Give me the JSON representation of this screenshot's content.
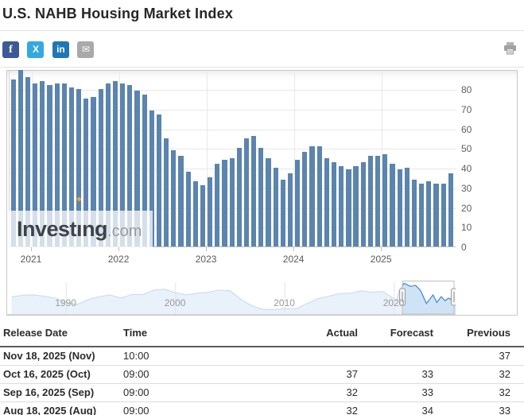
{
  "page": {
    "title": "U.S. NAHB Housing Market Index"
  },
  "share": {
    "facebook_label": "f",
    "x_label": "X",
    "linkedin_label": "in",
    "email_glyph": "✉"
  },
  "chart_data": {
    "type": "bar",
    "title": "U.S. NAHB Housing Market Index",
    "x_unit": "month",
    "months": [
      "2020-10",
      "2020-11",
      "2020-12",
      "2021-01",
      "2021-02",
      "2021-03",
      "2021-04",
      "2021-05",
      "2021-06",
      "2021-07",
      "2021-08",
      "2021-09",
      "2021-10",
      "2021-11",
      "2021-12",
      "2022-01",
      "2022-02",
      "2022-03",
      "2022-04",
      "2022-05",
      "2022-06",
      "2022-07",
      "2022-08",
      "2022-09",
      "2022-10",
      "2022-11",
      "2022-12",
      "2023-01",
      "2023-02",
      "2023-03",
      "2023-04",
      "2023-05",
      "2023-06",
      "2023-07",
      "2023-08",
      "2023-09",
      "2023-10",
      "2023-11",
      "2023-12",
      "2024-01",
      "2024-02",
      "2024-03",
      "2024-04",
      "2024-05",
      "2024-06",
      "2024-07",
      "2024-08",
      "2024-09",
      "2024-10",
      "2024-11",
      "2024-12",
      "2025-01",
      "2025-02",
      "2025-03",
      "2025-04",
      "2025-05",
      "2025-06",
      "2025-07",
      "2025-08",
      "2025-09",
      "2025-10"
    ],
    "values": [
      85,
      90,
      86,
      83,
      84,
      82,
      83,
      83,
      81,
      80,
      75,
      76,
      80,
      83,
      84,
      83,
      82,
      79,
      77,
      69,
      67,
      55,
      49,
      46,
      38,
      33,
      31,
      35,
      42,
      44,
      45,
      50,
      55,
      56,
      50,
      45,
      40,
      34,
      37,
      44,
      48,
      51,
      51,
      45,
      43,
      41,
      39,
      41,
      43,
      46,
      46,
      47,
      42,
      39,
      40,
      34,
      32,
      33,
      32,
      32,
      37
    ],
    "year_tick_labels": [
      "2021",
      "2022",
      "2023",
      "2024",
      "2025"
    ],
    "y_tick_labels": [
      0,
      10,
      20,
      30,
      40,
      50,
      60,
      70,
      80
    ],
    "ylim": [
      0,
      90
    ],
    "grid": true,
    "legend": "none",
    "bar_color": "#5b84ae",
    "navigator": {
      "decade_labels": [
        "1990",
        "2000",
        "2010",
        "2020"
      ],
      "points": [
        [
          1985,
          50
        ],
        [
          1986,
          55
        ],
        [
          1987,
          56
        ],
        [
          1988,
          52
        ],
        [
          1989,
          47
        ],
        [
          1990,
          34
        ],
        [
          1991,
          28
        ],
        [
          1992,
          42
        ],
        [
          1993,
          51
        ],
        [
          1994,
          56
        ],
        [
          1995,
          47
        ],
        [
          1996,
          57
        ],
        [
          1997,
          57
        ],
        [
          1998,
          70
        ],
        [
          1999,
          73
        ],
        [
          2000,
          62
        ],
        [
          2001,
          56
        ],
        [
          2002,
          61
        ],
        [
          2003,
          64
        ],
        [
          2004,
          70
        ],
        [
          2005,
          68
        ],
        [
          2006,
          42
        ],
        [
          2007,
          24
        ],
        [
          2008,
          14
        ],
        [
          2009,
          13
        ],
        [
          2010,
          16
        ],
        [
          2011,
          15
        ],
        [
          2012,
          30
        ],
        [
          2013,
          45
        ],
        [
          2014,
          52
        ],
        [
          2015,
          60
        ],
        [
          2016,
          61
        ],
        [
          2017,
          68
        ],
        [
          2018,
          64
        ],
        [
          2019,
          66
        ],
        [
          2020.2,
          40
        ],
        [
          2020.45,
          68
        ],
        [
          2020.9,
          90
        ],
        [
          2021.5,
          81
        ],
        [
          2021.95,
          84
        ],
        [
          2022.4,
          69
        ],
        [
          2022.95,
          31
        ],
        [
          2023.3,
          45
        ],
        [
          2023.55,
          56
        ],
        [
          2023.9,
          34
        ],
        [
          2024.05,
          40
        ],
        [
          2024.3,
          51
        ],
        [
          2024.65,
          39
        ],
        [
          2024.95,
          46
        ],
        [
          2025.1,
          45
        ],
        [
          2025.4,
          34
        ],
        [
          2025.65,
          32
        ],
        [
          2025.8,
          37
        ]
      ],
      "selection": {
        "from": 2020.75,
        "to": 2025.8
      }
    }
  },
  "watermark": {
    "text": "Investing",
    "suffix": ".com"
  },
  "table": {
    "headers": [
      "Release Date",
      "Time",
      "Actual",
      "Forecast",
      "Previous"
    ],
    "rows": [
      {
        "date": "Nov 18, 2025 (Nov)",
        "time": "10:00",
        "actual": "",
        "forecast": "",
        "previous": "37",
        "actual_class": ""
      },
      {
        "date": "Oct 16, 2025 (Oct)",
        "time": "09:00",
        "actual": "37",
        "forecast": "33",
        "previous": "32",
        "actual_class": "green"
      },
      {
        "date": "Sep 16, 2025 (Sep)",
        "time": "09:00",
        "actual": "32",
        "forecast": "33",
        "previous": "32",
        "actual_class": "red"
      },
      {
        "date": "Aug 18, 2025 (Aug)",
        "time": "09:00",
        "actual": "32",
        "forecast": "34",
        "previous": "33",
        "actual_class": "red"
      }
    ]
  },
  "colors": {
    "bar": "#5b84ae",
    "actual_green": "#1f9e1f",
    "actual_red": "#e13232",
    "watermark_orange": "#f7a428",
    "facebook_blue": "#3c5a99",
    "x_blue": "#33a9e0",
    "linkedin_blue": "#2077b5",
    "email_gray": "#a9a9a9"
  }
}
